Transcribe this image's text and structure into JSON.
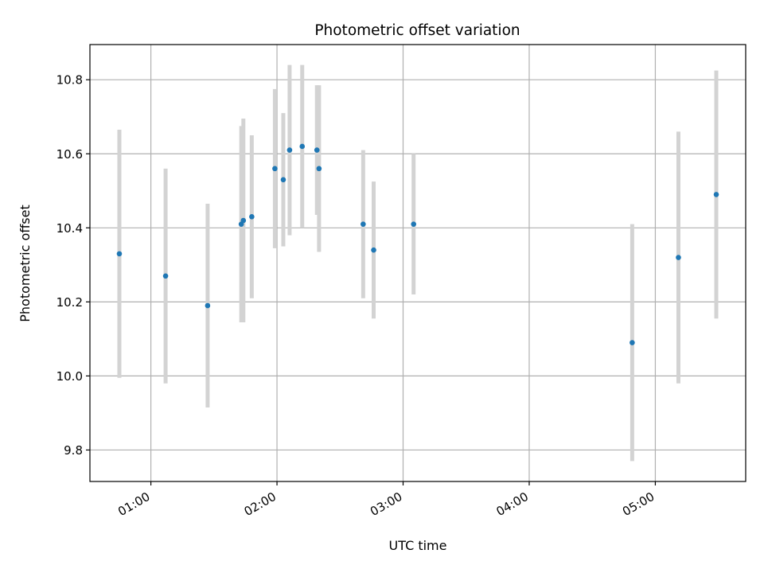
{
  "chart_data": {
    "type": "scatter",
    "title": "Photometric offset variation",
    "xlabel": "UTC time",
    "ylabel": "Photometric offset",
    "x_unit": "UTC time (HH:MM)",
    "xlim": [
      "00:31",
      "05:43"
    ],
    "ylim": [
      9.715,
      10.895
    ],
    "x_ticks": [
      "01:00",
      "02:00",
      "03:00",
      "04:00",
      "05:00"
    ],
    "y_ticks": [
      "9.8",
      "10.0",
      "10.2",
      "10.4",
      "10.6",
      "10.8"
    ],
    "grid": true,
    "legend": null,
    "colors": {
      "marker": "#1f77b4",
      "error_bar": "#d3d3d3",
      "grid": "#b0b0b0",
      "axes": "#000000"
    },
    "points": [
      {
        "time": "00:45",
        "value": 10.33,
        "err": 0.335
      },
      {
        "time": "01:07",
        "value": 10.27,
        "err": 0.29
      },
      {
        "time": "01:27",
        "value": 10.19,
        "err": 0.275
      },
      {
        "time": "01:43",
        "value": 10.41,
        "err": 0.265
      },
      {
        "time": "01:44",
        "value": 10.42,
        "err": 0.275
      },
      {
        "time": "01:48",
        "value": 10.43,
        "err": 0.22
      },
      {
        "time": "01:59",
        "value": 10.56,
        "err": 0.215
      },
      {
        "time": "02:03",
        "value": 10.53,
        "err": 0.18
      },
      {
        "time": "02:06",
        "value": 10.61,
        "err": 0.23
      },
      {
        "time": "02:12",
        "value": 10.62,
        "err": 0.22
      },
      {
        "time": "02:19",
        "value": 10.61,
        "err": 0.175
      },
      {
        "time": "02:20",
        "value": 10.56,
        "err": 0.225
      },
      {
        "time": "02:41",
        "value": 10.41,
        "err": 0.2
      },
      {
        "time": "02:46",
        "value": 10.34,
        "err": 0.185
      },
      {
        "time": "03:05",
        "value": 10.41,
        "err": 0.19
      },
      {
        "time": "04:49",
        "value": 10.09,
        "err": 0.32
      },
      {
        "time": "05:11",
        "value": 10.32,
        "err": 0.34
      },
      {
        "time": "05:29",
        "value": 10.49,
        "err": 0.335
      }
    ]
  }
}
